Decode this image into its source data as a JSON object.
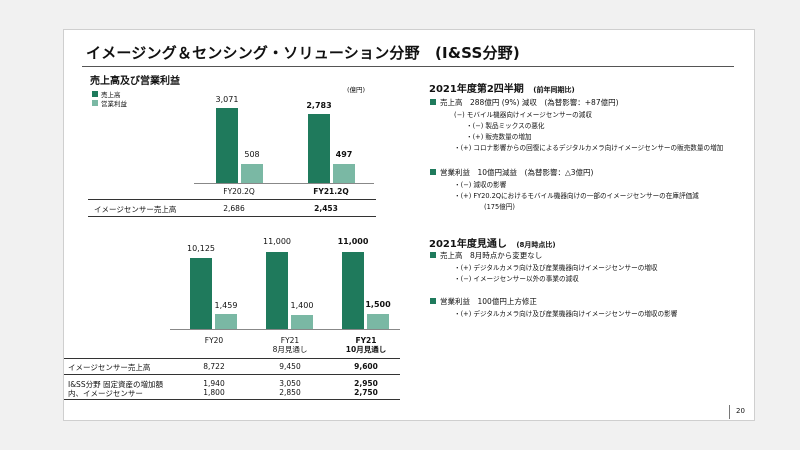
{
  "title": "イメージング＆センシング・ソリューション分野　(I&SS分野)",
  "left": {
    "section_title": "売上高及び営業利益",
    "unit": "(億円)",
    "legend": [
      {
        "label": "売上高",
        "color": "#1f7a5c"
      },
      {
        "label": "営業利益",
        "color": "#7ab8a4"
      }
    ]
  },
  "chart_data": [
    {
      "type": "bar",
      "categories": [
        "FY20.2Q",
        "FY21.2Q"
      ],
      "series": [
        {
          "name": "売上高",
          "values": [
            3071,
            2783
          ],
          "labels": [
            "3,071",
            "2,783"
          ],
          "color": "#1f7a5c"
        },
        {
          "name": "営業利益",
          "values": [
            508,
            497
          ],
          "labels": [
            "508",
            "497"
          ],
          "color": "#7ab8a4"
        }
      ]
    },
    {
      "type": "bar",
      "categories": [
        "FY20",
        "FY21 8月見通し",
        "FY21 10月見通し"
      ],
      "series": [
        {
          "name": "売上高",
          "values": [
            10125,
            11000,
            11000
          ],
          "labels": [
            "10,125",
            "11,000",
            "11,000"
          ],
          "color": "#1f7a5c"
        },
        {
          "name": "営業利益",
          "values": [
            1459,
            1400,
            1500
          ],
          "labels": [
            "1,459",
            "1,400",
            "1,500"
          ],
          "color": "#7ab8a4"
        }
      ]
    }
  ],
  "quarter_chart": {
    "cat1": "FY20.2Q",
    "cat2": "FY21.2Q",
    "s1": [
      "3,071",
      "2,783"
    ],
    "s2": [
      "508",
      "497"
    ],
    "row_label": "イメージセンサー売上高",
    "row_values": [
      "2,686",
      "2,453"
    ]
  },
  "year_chart": {
    "cat1": "FY20",
    "cat2_l1": "FY21",
    "cat2_l2": "8月見通し",
    "cat3_l1": "FY21",
    "cat3_l2": "10月見通し",
    "s1": [
      "10,125",
      "11,000",
      "11,000"
    ],
    "s2": [
      "1,459",
      "1,400",
      "1,500"
    ],
    "row1_label": "イメージセンサー売上高",
    "row1_values": [
      "8,722",
      "9,450",
      "9,600"
    ],
    "row2_label_l1": "I&SS分野 固定資産の増加額",
    "row2_label_l2": "内、イメージセンサー",
    "row2_values_l1": [
      "1,940",
      "3,050",
      "2,950"
    ],
    "row2_values_l2": [
      "1,800",
      "2,850",
      "2,750"
    ]
  },
  "right": {
    "q_heading": "2021年度第2四半期",
    "q_heading_sub": "(前年同期比)",
    "q_sales": "売上高　288億円 (9%) 減収　(為替影響：+87億円)",
    "q_sales_lines": [
      "(−) モバイル機器向けイメージセンサーの減収",
      "・(−) 製品ミックスの悪化",
      "・(+) 販売数量の増加",
      "・(+) コロナ影響からの回復によるデジタルカメラ向けイメージセンサーの販売数量の増加"
    ],
    "q_op": "営業利益　10億円減益　(為替影響：△3億円)",
    "q_op_lines": [
      "・(−) 減収の影響",
      "・(+) FY20.2Qにおけるモバイル機器向けの一部のイメージセンサーの在庫評価減",
      "(175億円)"
    ],
    "f_heading": "2021年度見通し",
    "f_heading_sub": "(8月時点比)",
    "f_sales": "売上高　8月時点から変更なし",
    "f_sales_lines": [
      "・(+) デジタルカメラ向け及び産業機器向けイメージセンサーの増収",
      "・(−) イメージセンサー以外の事業の減収"
    ],
    "f_op": "営業利益　100億円上方修正",
    "f_op_lines": [
      "・(+) デジタルカメラ向け及び産業機器向けイメージセンサーの増収の影響"
    ],
    "accent": "#1f7a5c"
  },
  "page_number": "20"
}
